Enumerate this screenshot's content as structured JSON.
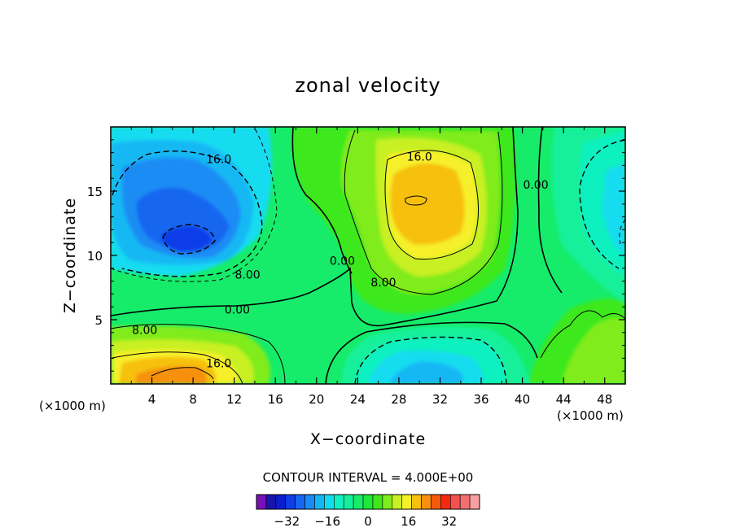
{
  "chart_data": {
    "type": "contour",
    "title": "zonal velocity",
    "xlabel": "X−coordinate",
    "ylabel": "Z−coordinate",
    "x_unit_label": "(×1000 m)",
    "x_unit_label_right": "(×1000 m)",
    "xlim": [
      0,
      50
    ],
    "ylim": [
      0,
      20
    ],
    "x_ticks": [
      4,
      8,
      12,
      16,
      20,
      24,
      28,
      32,
      36,
      40,
      44,
      48
    ],
    "x_tick_labels": [
      "4",
      "8",
      "12",
      "16",
      "20",
      "24",
      "28",
      "32",
      "36",
      "40",
      "44",
      "48"
    ],
    "y_ticks": [
      5,
      10,
      15
    ],
    "y_tick_labels": [
      "5",
      "10",
      "15"
    ],
    "contour_interval_text": "CONTOUR INTERVAL = 4.000E+00",
    "contour_interval": 4,
    "contour_labels": [
      {
        "text": "16.0",
        "x": 10.5,
        "y": 17.5
      },
      {
        "text": "16.0",
        "x": 30.0,
        "y": 17.7
      },
      {
        "text": "0.00",
        "x": 41.3,
        "y": 15.5
      },
      {
        "text": "0.00",
        "x": 22.5,
        "y": 9.6
      },
      {
        "text": "8.00",
        "x": 26.5,
        "y": 7.9
      },
      {
        "text": "8.00",
        "x": 13.3,
        "y": 8.5
      },
      {
        "text": "0.00",
        "x": 12.3,
        "y": 5.8
      },
      {
        "text": "8.00",
        "x": 3.3,
        "y": 4.2
      },
      {
        "text": "16.0",
        "x": 10.5,
        "y": 1.6
      }
    ],
    "features": [
      {
        "kind": "min",
        "x": 7,
        "y": 11.5,
        "value": -28
      },
      {
        "kind": "max",
        "x": 30,
        "y": 14,
        "value": 20
      },
      {
        "kind": "max",
        "x": 6,
        "y": 0.8,
        "value": 24
      },
      {
        "kind": "min",
        "x": 30,
        "y": 1.2,
        "value": -12
      },
      {
        "kind": "min",
        "x": 49.5,
        "y": 11,
        "value": -12
      }
    ],
    "colorbar": {
      "levels": [
        -40,
        -36,
        -32,
        -28,
        -24,
        -20,
        -16,
        -12,
        -8,
        -4,
        0,
        4,
        8,
        12,
        16,
        20,
        24,
        28,
        32,
        36,
        40
      ],
      "tick_values": [
        -32,
        -16,
        0,
        16,
        32
      ],
      "tick_labels": [
        "−32",
        "−16",
        "0",
        "16",
        "32"
      ],
      "colors": [
        "#7a0fb8",
        "#1a14a8",
        "#0a1ecc",
        "#0e3ee8",
        "#1566f0",
        "#1a8cf5",
        "#12b8f4",
        "#14dcf0",
        "#10f0c0",
        "#14f09a",
        "#16ec6a",
        "#1ee83a",
        "#3ee81a",
        "#80ec1c",
        "#c8f024",
        "#f6f02a",
        "#f6c010",
        "#f6900e",
        "#f45a0a",
        "#f42a10",
        "#f45050",
        "#f47070",
        "#f8a0a0"
      ]
    }
  }
}
